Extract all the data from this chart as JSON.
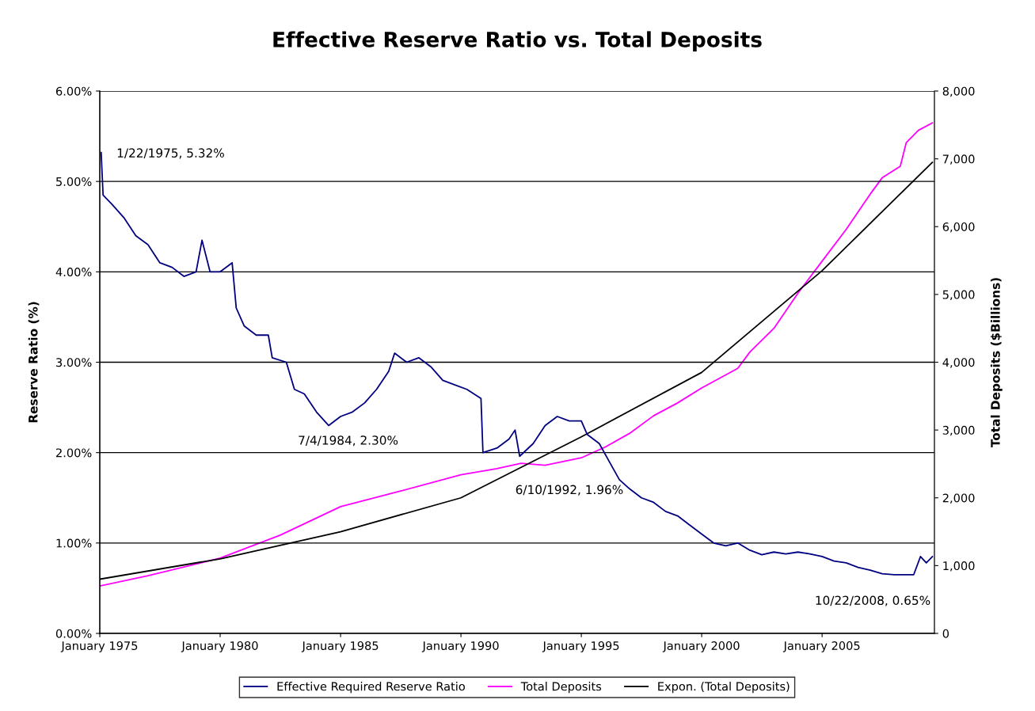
{
  "chart_data": {
    "type": "line",
    "title": "Effective Reserve Ratio vs. Total Deposits",
    "ylabel": "Reserve Ratio (%)",
    "y2label": "Total Deposits ($Billions)",
    "xlim": [
      "1975-01-01",
      "2009-09-01"
    ],
    "xticks": [
      {
        "value": "1975-01-01",
        "label": "January 1975"
      },
      {
        "value": "1980-01-01",
        "label": "January 1980"
      },
      {
        "value": "1985-01-01",
        "label": "January 1985"
      },
      {
        "value": "1990-01-01",
        "label": "January 1990"
      },
      {
        "value": "1995-01-01",
        "label": "January 1995"
      },
      {
        "value": "2000-01-01",
        "label": "January 2000"
      },
      {
        "value": "2005-01-01",
        "label": "January 2005"
      }
    ],
    "ylim": [
      0,
      6
    ],
    "yticks": [
      {
        "value": 0,
        "label": "0.00%"
      },
      {
        "value": 1,
        "label": "1.00%"
      },
      {
        "value": 2,
        "label": "2.00%"
      },
      {
        "value": 3,
        "label": "3.00%"
      },
      {
        "value": 4,
        "label": "4.00%"
      },
      {
        "value": 5,
        "label": "5.00%"
      },
      {
        "value": 6,
        "label": "6.00%"
      }
    ],
    "y2lim": [
      0,
      8000
    ],
    "y2ticks": [
      0,
      {
        "value": 1000,
        "label": "1,000"
      },
      {
        "value": 2000,
        "label": "2,000"
      },
      {
        "value": 3000,
        "label": "3,000"
      },
      {
        "value": 4000,
        "label": "4,000"
      },
      {
        "value": 5000,
        "label": "5,000"
      },
      {
        "value": 6000,
        "label": "6,000"
      },
      {
        "value": 7000,
        "label": "7,000"
      },
      {
        "value": 8000,
        "label": "8,000"
      }
    ],
    "grid": "y",
    "legend": "bottom",
    "series": [
      {
        "name": "Effective Required Reserve Ratio",
        "color": "#000080",
        "x": [
          "1975-01-22",
          "1975-02-20",
          "1975-07",
          "1976-01",
          "1976-07",
          "1977-01",
          "1977-07",
          "1978-01",
          "1978-07",
          "1979-01",
          "1979-04",
          "1979-08",
          "1980-01",
          "1980-07",
          "1980-09",
          "1981-01",
          "1981-07",
          "1982-01",
          "1982-03",
          "1982-10",
          "1983-02",
          "1983-07",
          "1984-01",
          "1984-07-04",
          "1985-01",
          "1985-07",
          "1986-01",
          "1986-07",
          "1987-01",
          "1987-04",
          "1987-10",
          "1988-04",
          "1988-10",
          "1989-04",
          "1989-10",
          "1990-04",
          "1990-11",
          "1990-12",
          "1991-07",
          "1992-01",
          "1992-04",
          "1992-06-10",
          "1993-01",
          "1993-07",
          "1994-01",
          "1994-07",
          "1995-01",
          "1995-04",
          "1995-10",
          "1996-03",
          "1996-08",
          "1997-01",
          "1997-07",
          "1998-01",
          "1998-07",
          "1999-01",
          "1999-07",
          "2000-01",
          "2000-07",
          "2001-01",
          "2001-07",
          "2002-01",
          "2002-07",
          "2003-01",
          "2003-07",
          "2004-01",
          "2004-07",
          "2005-01",
          "2005-07",
          "2006-01",
          "2006-07",
          "2007-01",
          "2007-07",
          "2008-01",
          "2008-10-22",
          "2009-02",
          "2009-05",
          "2009-08"
        ],
        "values": [
          5.32,
          4.85,
          4.75,
          4.6,
          4.4,
          4.3,
          4.1,
          4.05,
          3.95,
          4.0,
          4.35,
          4.0,
          4.0,
          4.1,
          3.6,
          3.4,
          3.3,
          3.3,
          3.05,
          3.0,
          2.7,
          2.65,
          2.45,
          2.3,
          2.4,
          2.45,
          2.55,
          2.7,
          2.9,
          3.1,
          3.0,
          3.05,
          2.95,
          2.8,
          2.75,
          2.7,
          2.6,
          2.0,
          2.05,
          2.15,
          2.25,
          1.96,
          2.1,
          2.3,
          2.4,
          2.35,
          2.35,
          2.2,
          2.1,
          1.9,
          1.7,
          1.6,
          1.5,
          1.45,
          1.35,
          1.3,
          1.2,
          1.1,
          1.0,
          0.97,
          1.0,
          0.92,
          0.87,
          0.9,
          0.88,
          0.9,
          0.88,
          0.85,
          0.8,
          0.78,
          0.73,
          0.7,
          0.66,
          0.65,
          0.65,
          0.85,
          0.78,
          0.85
        ]
      },
      {
        "name": "Total Deposits",
        "color": "#ff00ff",
        "axis": "y2",
        "x": [
          "1975-01",
          "1977-01",
          "1980-01",
          "1982-07",
          "1985-01",
          "1987-07",
          "1990-01",
          "1991-07",
          "1992-07",
          "1993-07",
          "1995-01",
          "1996-01",
          "1997-01",
          "1998-01",
          "1999-01",
          "2000-01",
          "2001-07",
          "2002-01",
          "2003-01",
          "2004-01",
          "2005-01",
          "2006-01",
          "2007-01",
          "2007-07",
          "2008-04",
          "2008-07",
          "2009-01",
          "2009-08"
        ],
        "values": [
          700,
          850,
          1110,
          1450,
          1870,
          2100,
          2340,
          2430,
          2510,
          2480,
          2590,
          2750,
          2950,
          3210,
          3400,
          3620,
          3910,
          4150,
          4500,
          5020,
          5490,
          5960,
          6480,
          6720,
          6890,
          7240,
          7420,
          7530
        ]
      },
      {
        "name": "Expon. (Total Deposits)",
        "color": "#000000",
        "axis": "y2",
        "x": [
          "1975-01",
          "1980-01",
          "1985-01",
          "1990-01",
          "1995-01",
          "2000-01",
          "2005-01",
          "2009-08"
        ],
        "values": [
          800,
          1100,
          1500,
          2000,
          2900,
          3850,
          5350,
          6950
        ]
      }
    ],
    "annotations": [
      {
        "text": "1/22/1975, 5.32%",
        "x": "1975-01-22",
        "y": 5.32
      },
      {
        "text": "7/4/1984, 2.30%",
        "x": "1984-07-04",
        "y": 2.3
      },
      {
        "text": "6/10/1992, 1.96%",
        "x": "1992-06-10",
        "y": 1.96
      },
      {
        "text": "10/22/2008, 0.65%",
        "x": "2008-10-22",
        "y": 0.65
      }
    ]
  }
}
